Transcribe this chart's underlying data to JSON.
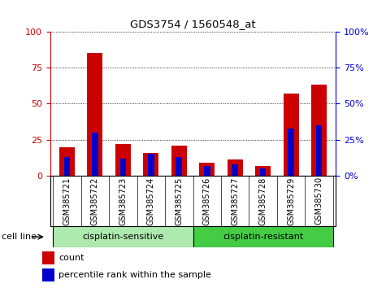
{
  "title": "GDS3754 / 1560548_at",
  "samples": [
    "GSM385721",
    "GSM385722",
    "GSM385723",
    "GSM385724",
    "GSM385725",
    "GSM385726",
    "GSM385727",
    "GSM385728",
    "GSM385729",
    "GSM385730"
  ],
  "count_values": [
    20,
    85,
    22,
    16,
    21,
    9,
    11,
    7,
    57,
    63
  ],
  "percentile_values": [
    13,
    30,
    12,
    15,
    13,
    7,
    8,
    5,
    33,
    35
  ],
  "groups": [
    {
      "label": "cisplatin-sensitive",
      "start": 0,
      "end": 5,
      "color": "#aeeaae"
    },
    {
      "label": "cisplatin-resistant",
      "start": 5,
      "end": 10,
      "color": "#44cc44"
    }
  ],
  "count_color": "#cc0000",
  "percentile_color": "#0000cc",
  "ylim": [
    0,
    100
  ],
  "yticks": [
    0,
    25,
    50,
    75,
    100
  ],
  "tick_label_color_left": "#cc0000",
  "tick_label_color_right": "#0000cc",
  "legend_count_label": "count",
  "legend_percentile_label": "percentile rank within the sample",
  "cell_line_label": "cell line"
}
